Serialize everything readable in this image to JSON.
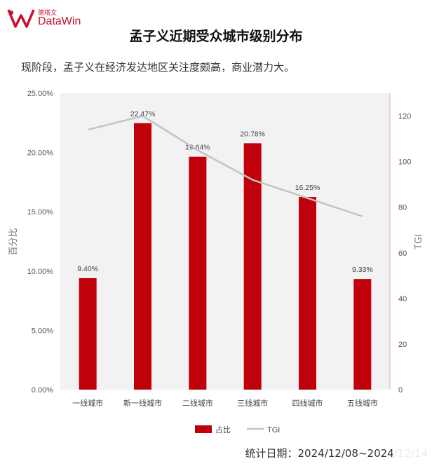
{
  "brand": {
    "logo_cn": "德塔文",
    "logo_en": "DataWin",
    "logo_color": "#c8102e"
  },
  "header": {
    "title": "孟子义近期受众城市级别分布"
  },
  "subtitle": "现阶段，孟子义在经济发达地区关注度颇高，商业潜力大。",
  "footer": {
    "date_text": "统计日期：2024/12/08~2024/12/14"
  },
  "chart_data": {
    "type": "bar",
    "categories": [
      "一线城市",
      "新一线城市",
      "二线城市",
      "三线城市",
      "四线城市",
      "五线城市"
    ],
    "series": [
      {
        "name": "占比",
        "kind": "bar",
        "axis": "left",
        "color": "#c0000a",
        "values": [
          9.4,
          22.47,
          19.64,
          20.78,
          16.25,
          9.33
        ],
        "labels": [
          "9.40%",
          "22.47%",
          "19.64%",
          "20.78%",
          "16.25%",
          "9.33%"
        ]
      },
      {
        "name": "TGI",
        "kind": "line",
        "axis": "right",
        "color": "#c4c4c4",
        "values": [
          114,
          120,
          105,
          92,
          84,
          76
        ]
      }
    ],
    "y_left": {
      "label": "百分比",
      "ylim": [
        0,
        25
      ],
      "ticks": [
        "0.00%",
        "5.00%",
        "10.00%",
        "15.00%",
        "20.00%",
        "25.00%"
      ]
    },
    "y_right": {
      "label": "TGI",
      "ylim": [
        0,
        130
      ],
      "ticks": [
        "0",
        "20",
        "40",
        "60",
        "80",
        "100",
        "120"
      ]
    },
    "legend": "bottom-center",
    "grid": false,
    "plot_bg": "#f2f2f2"
  }
}
